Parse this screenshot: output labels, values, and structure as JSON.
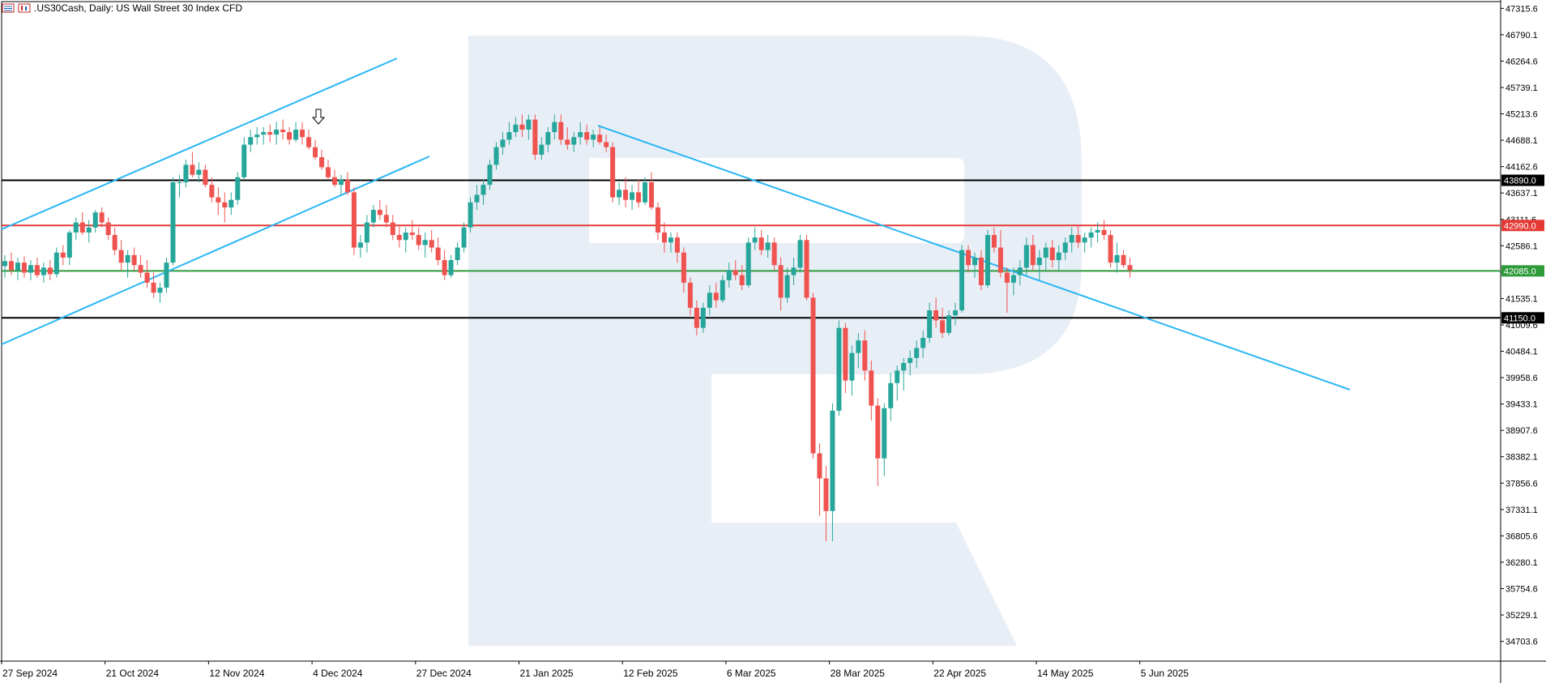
{
  "window": {
    "symbol": ".US30Cash",
    "timeframe": "Daily",
    "description": "US Wall Street 30 Index CFD",
    "title_text": ".US30Cash, Daily:  US Wall Street 30 Index CFD"
  },
  "icons": [
    "chart-grid-icon",
    "chart-candles-icon"
  ],
  "colors": {
    "bull": "#26a69a",
    "bear": "#ef5350",
    "trendline": "#29b6f6",
    "resistance": "#e53935",
    "support": "#2e9a3a",
    "level": "#000000",
    "watermark": "#e8eef6"
  },
  "chart_data": {
    "type": "candlestick",
    "title": "",
    "ylim": [
      34310,
      47450
    ],
    "y_ticks": [
      "47315.6",
      "46790.1",
      "46264.6",
      "45739.1",
      "45213.6",
      "44688.1",
      "44162.6",
      "43637.1",
      "43111.6",
      "42586.1",
      "42060.6",
      "41535.1",
      "41009.6",
      "40484.1",
      "39958.6",
      "39433.1",
      "38907.6",
      "38382.1",
      "37856.6",
      "37331.1",
      "36805.6",
      "36280.1",
      "35754.6",
      "35229.1",
      "34703.6"
    ],
    "x_labels": [
      "27 Sep 2024",
      "21 Oct 2024",
      "12 Nov 2024",
      "4 Dec 2024",
      "27 Dec 2024",
      "21 Jan 2025",
      "12 Feb 2025",
      "6 Mar 2025",
      "28 Mar 2025",
      "22 Apr 2025",
      "14 May 2025",
      "5 Jun 2025"
    ],
    "horizontal_levels": [
      {
        "value": 43890.0,
        "label": "43890.0",
        "color": "level"
      },
      {
        "value": 42990.0,
        "label": "42990.0",
        "color": "resistance"
      },
      {
        "value": 42085.0,
        "label": "42085.0",
        "color": "support"
      },
      {
        "value": 41150.0,
        "label": "41150.0",
        "color": "level"
      }
    ],
    "ohlc": [
      [
        42180,
        42400,
        41950,
        42280
      ],
      [
        42280,
        42450,
        42000,
        42100
      ],
      [
        42100,
        42350,
        41900,
        42250
      ],
      [
        42250,
        42380,
        41950,
        42050
      ],
      [
        42050,
        42300,
        41900,
        42200
      ],
      [
        42200,
        42350,
        41950,
        42000
      ],
      [
        42000,
        42250,
        41850,
        42150
      ],
      [
        42150,
        42300,
        41900,
        42020
      ],
      [
        42020,
        42550,
        41950,
        42450
      ],
      [
        42450,
        42600,
        42200,
        42350
      ],
      [
        42350,
        42900,
        42200,
        42850
      ],
      [
        42850,
        43150,
        42700,
        43050
      ],
      [
        43050,
        43250,
        42800,
        42850
      ],
      [
        42850,
        43100,
        42650,
        42950
      ],
      [
        42950,
        43300,
        42850,
        43250
      ],
      [
        43250,
        43350,
        42950,
        43050
      ],
      [
        43050,
        43150,
        42700,
        42800
      ],
      [
        42800,
        42950,
        42400,
        42500
      ],
      [
        42500,
        42700,
        42100,
        42250
      ],
      [
        42250,
        42500,
        41950,
        42400
      ],
      [
        42400,
        42550,
        42100,
        42200
      ],
      [
        42200,
        42400,
        41950,
        42050
      ],
      [
        42050,
        42300,
        41750,
        41850
      ],
      [
        41850,
        42050,
        41550,
        41650
      ],
      [
        41650,
        41850,
        41450,
        41750
      ],
      [
        41750,
        42350,
        41650,
        42250
      ],
      [
        42250,
        43950,
        42200,
        43850
      ],
      [
        43850,
        44000,
        43550,
        43850
      ],
      [
        43850,
        44300,
        43750,
        44200
      ],
      [
        44200,
        44450,
        43950,
        44000
      ],
      [
        44000,
        44250,
        43850,
        44100
      ],
      [
        44100,
        44200,
        43750,
        43800
      ],
      [
        43800,
        43950,
        43450,
        43550
      ],
      [
        43550,
        43750,
        43200,
        43450
      ],
      [
        43450,
        43650,
        43050,
        43350
      ],
      [
        43350,
        43650,
        43200,
        43500
      ],
      [
        43500,
        44050,
        43400,
        43950
      ],
      [
        43950,
        44750,
        43900,
        44600
      ],
      [
        44600,
        44900,
        44450,
        44750
      ],
      [
        44750,
        44950,
        44600,
        44800
      ],
      [
        44800,
        44950,
        44600,
        44850
      ],
      [
        44850,
        45000,
        44650,
        44800
      ],
      [
        44800,
        45050,
        44600,
        44900
      ],
      [
        44900,
        45100,
        44700,
        44850
      ],
      [
        44850,
        44950,
        44600,
        44700
      ],
      [
        44700,
        45050,
        44650,
        44900
      ],
      [
        44900,
        45050,
        44600,
        44750
      ],
      [
        44750,
        44900,
        44500,
        44550
      ],
      [
        44550,
        44700,
        44300,
        44350
      ],
      [
        44350,
        44500,
        44100,
        44150
      ],
      [
        44150,
        44300,
        43900,
        43950
      ],
      [
        43950,
        44100,
        43750,
        43800
      ],
      [
        43800,
        44000,
        43600,
        43900
      ],
      [
        43900,
        44050,
        43600,
        43650
      ],
      [
        43650,
        43750,
        42400,
        42550
      ],
      [
        42550,
        42800,
        42350,
        42650
      ],
      [
        42650,
        43200,
        42450,
        43050
      ],
      [
        43050,
        43400,
        42950,
        43300
      ],
      [
        43300,
        43500,
        43100,
        43200
      ],
      [
        43200,
        43400,
        42950,
        43050
      ],
      [
        43050,
        43200,
        42700,
        42800
      ],
      [
        42800,
        43000,
        42550,
        42700
      ],
      [
        42700,
        42950,
        42450,
        42850
      ],
      [
        42850,
        43100,
        42700,
        42800
      ],
      [
        42800,
        42950,
        42500,
        42600
      ],
      [
        42600,
        42850,
        42350,
        42700
      ],
      [
        42700,
        42900,
        42450,
        42550
      ],
      [
        42550,
        42750,
        42200,
        42300
      ],
      [
        42300,
        42500,
        41900,
        42000
      ],
      [
        42000,
        42400,
        41950,
        42300
      ],
      [
        42300,
        42650,
        42200,
        42550
      ],
      [
        42550,
        43050,
        42450,
        42950
      ],
      [
        42950,
        43550,
        42850,
        43450
      ],
      [
        43450,
        43800,
        43300,
        43600
      ],
      [
        43600,
        43900,
        43400,
        43800
      ],
      [
        43800,
        44300,
        43700,
        44200
      ],
      [
        44200,
        44650,
        44100,
        44550
      ],
      [
        44550,
        44850,
        44400,
        44700
      ],
      [
        44700,
        45050,
        44600,
        44850
      ],
      [
        44850,
        45150,
        44750,
        45000
      ],
      [
        45000,
        45200,
        44750,
        44900
      ],
      [
        44900,
        45200,
        44700,
        45100
      ],
      [
        45100,
        45200,
        44300,
        44400
      ],
      [
        44400,
        44750,
        44300,
        44600
      ],
      [
        44600,
        44950,
        44450,
        44850
      ],
      [
        44850,
        45200,
        44700,
        45050
      ],
      [
        45050,
        45200,
        44600,
        44700
      ],
      [
        44700,
        44950,
        44500,
        44600
      ],
      [
        44600,
        44850,
        44450,
        44750
      ],
      [
        44750,
        45050,
        44600,
        44850
      ],
      [
        44850,
        45000,
        44600,
        44700
      ],
      [
        44700,
        44900,
        44550,
        44800
      ],
      [
        44800,
        44950,
        44600,
        44650
      ],
      [
        44650,
        44800,
        44450,
        44550
      ],
      [
        44550,
        44650,
        43450,
        43550
      ],
      [
        43550,
        43850,
        43400,
        43700
      ],
      [
        43700,
        43950,
        43350,
        43500
      ],
      [
        43500,
        43800,
        43300,
        43650
      ],
      [
        43650,
        43900,
        43350,
        43450
      ],
      [
        43450,
        43950,
        43400,
        43850
      ],
      [
        43850,
        44050,
        43300,
        43350
      ],
      [
        43350,
        43450,
        42700,
        42850
      ],
      [
        42850,
        43050,
        42450,
        42650
      ],
      [
        42650,
        42850,
        42450,
        42750
      ],
      [
        42750,
        42850,
        42250,
        42450
      ],
      [
        42450,
        42550,
        41650,
        41850
      ],
      [
        41850,
        41950,
        41200,
        41350
      ],
      [
        41350,
        41500,
        40800,
        40950
      ],
      [
        40950,
        41450,
        40850,
        41350
      ],
      [
        41350,
        41800,
        41200,
        41650
      ],
      [
        41650,
        41850,
        41350,
        41500
      ],
      [
        41500,
        42000,
        41450,
        41900
      ],
      [
        41900,
        42250,
        41750,
        42100
      ],
      [
        42100,
        42300,
        41900,
        42000
      ],
      [
        42000,
        42200,
        41700,
        41800
      ],
      [
        41800,
        42750,
        41750,
        42650
      ],
      [
        42650,
        42950,
        42500,
        42750
      ],
      [
        42750,
        42900,
        42400,
        42500
      ],
      [
        42500,
        42800,
        42350,
        42650
      ],
      [
        42650,
        42750,
        42100,
        42200
      ],
      [
        42200,
        42350,
        41300,
        41550
      ],
      [
        41550,
        42150,
        41450,
        42000
      ],
      [
        42000,
        42350,
        41800,
        42150
      ],
      [
        42150,
        42800,
        42050,
        42700
      ],
      [
        42700,
        42800,
        41500,
        41550
      ],
      [
        41550,
        41650,
        38350,
        38450
      ],
      [
        38450,
        38650,
        37200,
        37950
      ],
      [
        37950,
        38200,
        36700,
        37300
      ],
      [
        37300,
        39450,
        36700,
        39300
      ],
      [
        39300,
        41100,
        39200,
        40950
      ],
      [
        40950,
        41050,
        39650,
        39900
      ],
      [
        39900,
        40600,
        39600,
        40450
      ],
      [
        40450,
        40850,
        40150,
        40700
      ],
      [
        40700,
        40900,
        39900,
        40100
      ],
      [
        40100,
        40300,
        39100,
        39400
      ],
      [
        39400,
        39550,
        37800,
        38350
      ],
      [
        38350,
        39450,
        38000,
        39350
      ],
      [
        39350,
        40050,
        39100,
        39850
      ],
      [
        39850,
        40200,
        39500,
        40100
      ],
      [
        40100,
        40350,
        39700,
        40250
      ],
      [
        40250,
        40500,
        40000,
        40350
      ],
      [
        40350,
        40700,
        40150,
        40550
      ],
      [
        40550,
        40900,
        40350,
        40750
      ],
      [
        40750,
        41450,
        40650,
        41300
      ],
      [
        41300,
        41550,
        40950,
        41100
      ],
      [
        41100,
        41350,
        40750,
        40850
      ],
      [
        40850,
        41300,
        40800,
        41200
      ],
      [
        41200,
        41450,
        41000,
        41300
      ],
      [
        41300,
        42600,
        41250,
        42500
      ],
      [
        42500,
        42600,
        42050,
        42200
      ],
      [
        42200,
        42450,
        41950,
        42350
      ],
      [
        42350,
        42500,
        41700,
        41800
      ],
      [
        41800,
        42900,
        41750,
        42800
      ],
      [
        42800,
        42950,
        42450,
        42550
      ],
      [
        42550,
        42900,
        41950,
        42050
      ],
      [
        42050,
        42150,
        41250,
        41850
      ],
      [
        41850,
        42150,
        41600,
        42000
      ],
      [
        42000,
        42300,
        41800,
        42150
      ],
      [
        42150,
        42750,
        42000,
        42600
      ],
      [
        42600,
        42800,
        42100,
        42200
      ],
      [
        42200,
        42500,
        41900,
        42350
      ],
      [
        42350,
        42650,
        42100,
        42550
      ],
      [
        42550,
        42700,
        42150,
        42300
      ],
      [
        42300,
        42600,
        42100,
        42450
      ],
      [
        42450,
        42750,
        42300,
        42650
      ],
      [
        42650,
        42950,
        42450,
        42800
      ],
      [
        42800,
        43000,
        42550,
        42650
      ],
      [
        42650,
        42850,
        42450,
        42750
      ],
      [
        42750,
        42950,
        42550,
        42850
      ],
      [
        42850,
        43050,
        42650,
        42900
      ],
      [
        42900,
        43100,
        42700,
        42800
      ],
      [
        42800,
        42900,
        42150,
        42250
      ],
      [
        42250,
        42650,
        42050,
        42400
      ],
      [
        42400,
        42500,
        42150,
        42200
      ],
      [
        42200,
        42350,
        41950,
        42100
      ]
    ]
  }
}
